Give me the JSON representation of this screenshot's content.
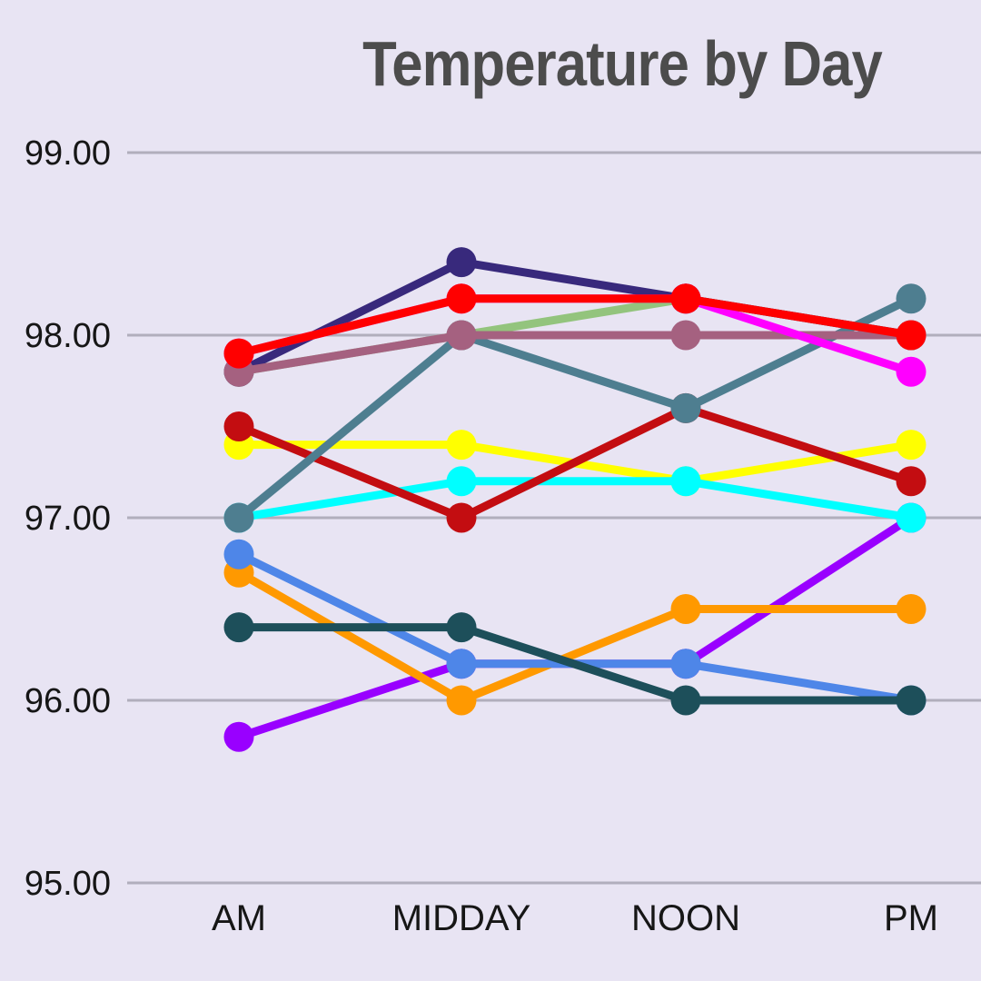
{
  "title": "Temperature by Day",
  "colors": {
    "background": "#e8e4f3",
    "gridline": "#b1aebc",
    "title_text": "#4c4c4c",
    "axis_text": "#161616"
  },
  "chart_data": {
    "type": "line",
    "title": "Temperature by Day",
    "categories": [
      "AM",
      "MIDDAY",
      "NOON",
      "PM"
    ],
    "y_ticks": [
      "99.00",
      "98.00",
      "97.00",
      "96.00",
      "95.00"
    ],
    "ylim": [
      95,
      99
    ],
    "grid": true,
    "legend": "none",
    "marker": "circle",
    "series": [
      {
        "name": "purple",
        "color": "#9900ff",
        "values": [
          95.8,
          96.2,
          96.2,
          97.0
        ]
      },
      {
        "name": "yellow",
        "color": "#ffff00",
        "values": [
          97.4,
          97.4,
          97.2,
          97.4
        ]
      },
      {
        "name": "cyan",
        "color": "#00ffff",
        "values": [
          97.0,
          97.2,
          97.2,
          97.0
        ]
      },
      {
        "name": "dark-red",
        "color": "#c30d11",
        "values": [
          97.5,
          97.0,
          97.6,
          97.2
        ]
      },
      {
        "name": "orange",
        "color": "#ff9900",
        "values": [
          96.7,
          96.0,
          96.5,
          96.5
        ]
      },
      {
        "name": "cornflower-blue",
        "color": "#4e86e8",
        "values": [
          96.8,
          96.2,
          96.2,
          96.0
        ]
      },
      {
        "name": "dark-teal",
        "color": "#1d4f5a",
        "values": [
          96.4,
          96.4,
          96.0,
          96.0
        ]
      },
      {
        "name": "green",
        "color": "#93c47d",
        "values": [
          97.8,
          98.0,
          98.2,
          98.0
        ]
      },
      {
        "name": "navy",
        "color": "#38297c",
        "values": [
          97.8,
          98.4,
          98.2,
          98.0
        ]
      },
      {
        "name": "slate-teal",
        "color": "#4e7e90",
        "values": [
          97.0,
          98.0,
          97.6,
          98.2
        ]
      },
      {
        "name": "puce",
        "color": "#a56180",
        "values": [
          97.8,
          98.0,
          98.0,
          98.0
        ]
      },
      {
        "name": "magenta",
        "color": "#ff00ff",
        "values": [
          97.9,
          98.2,
          98.2,
          97.8
        ]
      },
      {
        "name": "red",
        "color": "#ff0000",
        "values": [
          97.9,
          98.2,
          98.2,
          98.0
        ]
      }
    ]
  }
}
